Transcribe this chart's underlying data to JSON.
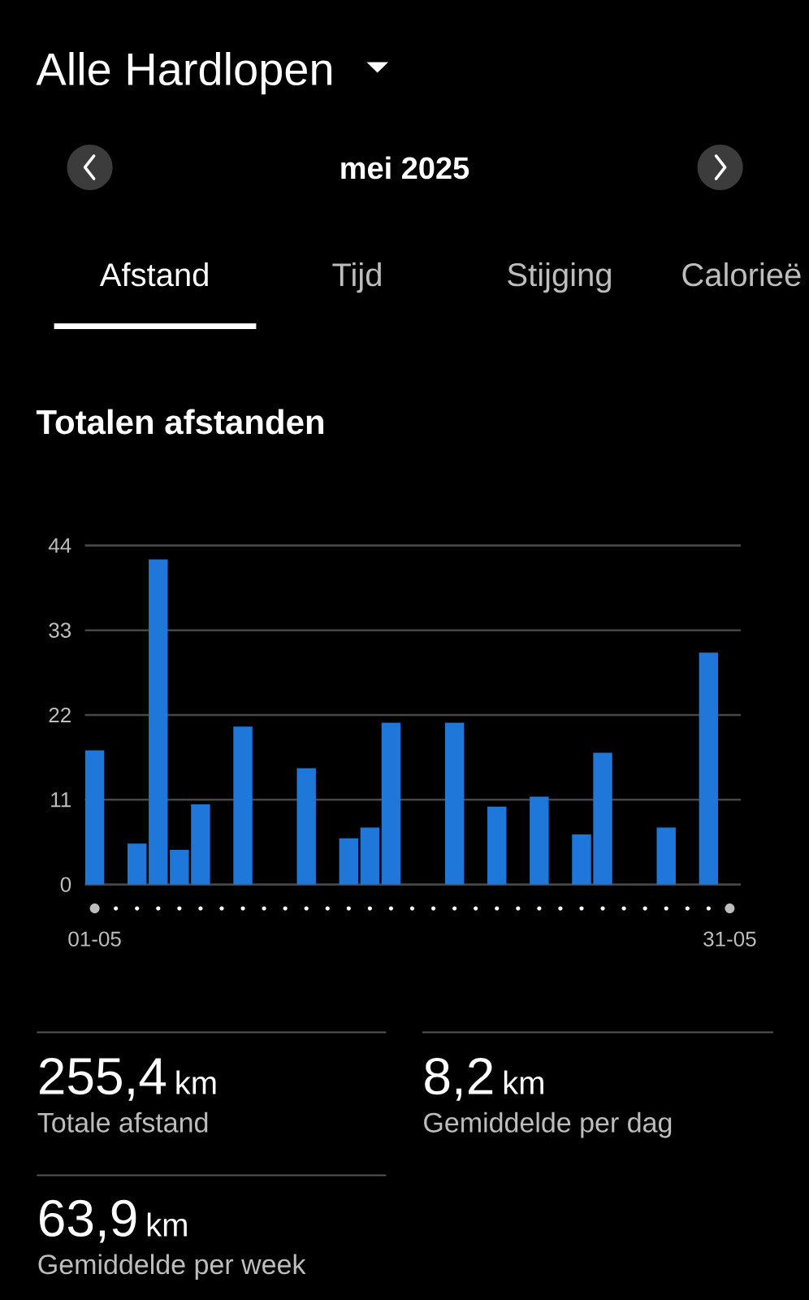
{
  "chart_data": {
    "type": "bar",
    "title": "Totalen afstanden",
    "subtitle": "mei 2025",
    "categories": [
      "01-05",
      null,
      null,
      null,
      null,
      null,
      null,
      null,
      null,
      null,
      null,
      null,
      null,
      null,
      null,
      null,
      null,
      null,
      null,
      null,
      null,
      null,
      null,
      null,
      null,
      null,
      null,
      null,
      null,
      null,
      "31-05"
    ],
    "values": [
      17.4,
      null,
      5.3,
      42.2,
      4.5,
      10.4,
      null,
      20.5,
      null,
      null,
      15.1,
      null,
      6.0,
      7.4,
      21.0,
      null,
      null,
      21.0,
      null,
      10.1,
      null,
      11.4,
      null,
      6.5,
      17.1,
      null,
      null,
      7.4,
      null,
      30.1,
      null
    ],
    "color": "#1e77d9",
    "ylim": [
      0,
      44
    ],
    "yticks": [
      0,
      11,
      22,
      33,
      44
    ],
    "grid": "y",
    "annotations": [
      "Alle Hardlopen",
      "Afstand",
      "Tijd",
      "Stijging",
      "Calorieë",
      "255,4",
      "km",
      "Totale afstand",
      "8,2",
      "km",
      "Gemiddelde per dag",
      "63,9",
      "km",
      "Gemiddelde per week"
    ]
  }
}
